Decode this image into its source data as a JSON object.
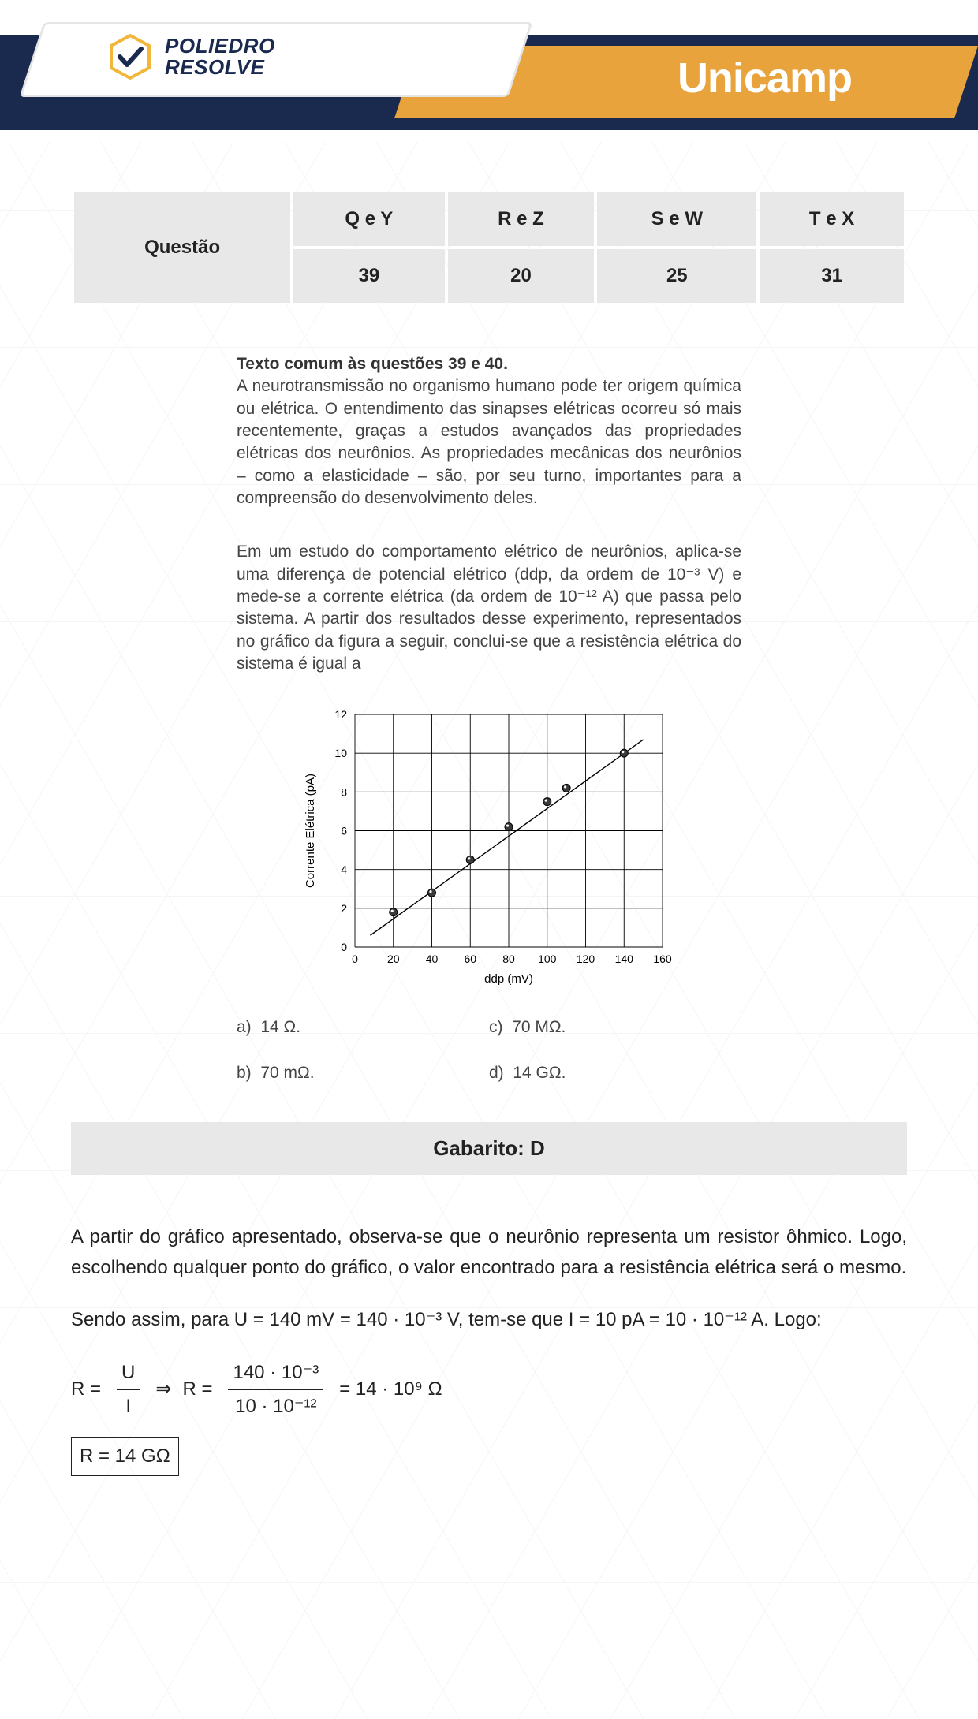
{
  "header": {
    "logo_line1": "POLIEDRO",
    "logo_line2": "RESOLVE",
    "university": "Unicamp",
    "colors": {
      "navy": "#1a2a4f",
      "orange": "#e8a33d",
      "white": "#ffffff",
      "logo_yellow": "#f2b63a",
      "logo_check": "#1a2a4f"
    }
  },
  "table": {
    "row_header": "Questão",
    "cols": [
      "Q e Y",
      "R e Z",
      "S e W",
      "T e X"
    ],
    "values": [
      "39",
      "20",
      "25",
      "31"
    ],
    "bg": "#e8e8e8"
  },
  "intro": {
    "lead": "Texto comum às questões 39 e 40.",
    "para1": "A neurotransmissão no organismo humano pode ter origem química ou elétrica. O entendimento das sinapses elétricas ocorreu só mais recentemente, graças a estudos avançados das propriedades elétricas dos neurônios. As propriedades mecânicas dos neurônios – como a elasticidade – são, por seu turno, importantes para a compreensão do desenvolvimento deles.",
    "para2": "Em um estudo do comportamento elétrico de neurônios, aplica-se uma diferença de potencial elétrico (ddp, da ordem de 10⁻³ V) e mede-se a corrente elétrica (da ordem de 10⁻¹² A) que passa pelo sistema. A partir dos resultados desse experimento, representados no gráfico da figura a seguir, conclui-se que a resistência elétrica do sistema é igual a"
  },
  "chart": {
    "type": "scatter-line",
    "xlabel": "ddp (mV)",
    "ylabel": "Corrente Elétrica (pA)",
    "xlim": [
      0,
      160
    ],
    "ylim": [
      0,
      12
    ],
    "xtick_step": 20,
    "ytick_step": 2,
    "xticks": [
      0,
      20,
      40,
      60,
      80,
      100,
      120,
      140,
      160
    ],
    "yticks": [
      0,
      2,
      4,
      6,
      8,
      10,
      12
    ],
    "points": [
      {
        "x": 20,
        "y": 1.8
      },
      {
        "x": 40,
        "y": 2.8
      },
      {
        "x": 60,
        "y": 4.5
      },
      {
        "x": 80,
        "y": 6.2
      },
      {
        "x": 100,
        "y": 7.5
      },
      {
        "x": 110,
        "y": 8.2
      },
      {
        "x": 140,
        "y": 10.0
      }
    ],
    "fit_line": {
      "x1": 8,
      "y1": 0.6,
      "x2": 150,
      "y2": 10.7
    },
    "marker_fill": "#3a3a3a",
    "marker_stroke": "#000000",
    "marker_radius": 5,
    "line_color": "#000000",
    "line_width": 1.4,
    "grid_color": "#000000",
    "grid_width": 0.9,
    "background": "#ffffff",
    "label_fontsize": 15,
    "tick_fontsize": 14
  },
  "options": {
    "a": "14 Ω.",
    "b": "70 mΩ.",
    "c": "70 MΩ.",
    "d": "14 GΩ."
  },
  "gabarito": "Gabarito: D",
  "solution": {
    "p1": "A partir do gráfico apresentado, observa-se que o neurônio representa um resistor ôhmico. Logo, escolhendo qualquer ponto do gráfico, o valor encontrado para a resistência elétrica será o mesmo.",
    "p2_a": "Sendo assim, para ",
    "p2_eqU": "U = 140 mV = 140 · 10⁻³ V",
    "p2_b": ", tem-se que ",
    "p2_eqI": "I = 10 pA = 10 · 10⁻¹² A",
    "p2_c": ". Logo:",
    "eq_lhs": "R =",
    "eq_frac1_num": "U",
    "eq_frac1_den": "I",
    "eq_arrow": "⇒",
    "eq_mid": "R =",
    "eq_frac2_num": "140 · 10⁻³",
    "eq_frac2_den": "10 · 10⁻¹²",
    "eq_rhs": "= 14 · 10⁹  Ω",
    "boxed": "R = 14 GΩ"
  }
}
